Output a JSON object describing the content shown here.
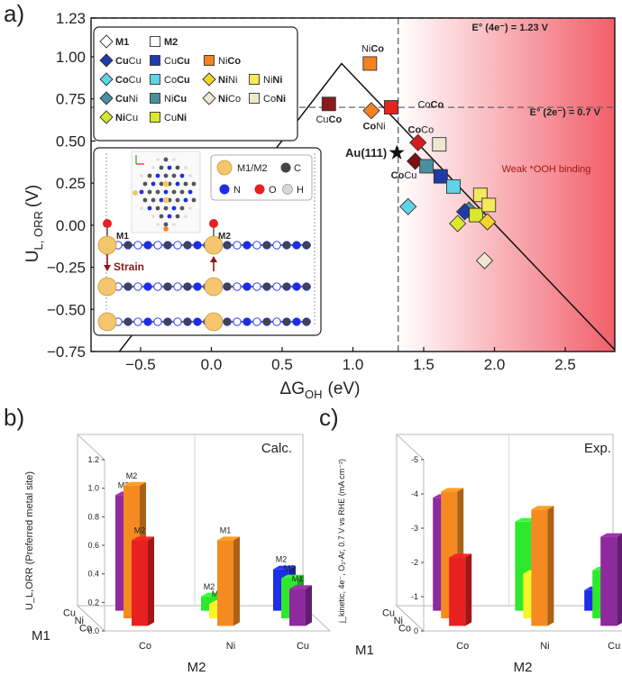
{
  "panel_a": {
    "label": "a)",
    "ylabel_main": "U",
    "ylabel_sub": "L, ORR",
    "ylabel_unit": "(V)",
    "xlabel_main": "ΔG",
    "xlabel_sub": "OH",
    "xlabel_unit": "(eV)",
    "e4_label": "E° (4e⁻) = 1.23 V",
    "e2_label": "E° (2e⁻) = 0.7 V",
    "weak_label": "Weak *OOH binding",
    "au_label": "Au(111)",
    "inset_legend": [
      {
        "text": "M1/M2",
        "color": "#f5c66e"
      },
      {
        "text": "C",
        "color": "#444444"
      },
      {
        "text": "N",
        "color": "#1d2de8"
      },
      {
        "text": "O",
        "color": "#e82020"
      },
      {
        "text": "H",
        "color": "#d8d8d8"
      }
    ],
    "inset_m1": "M1",
    "inset_m2": "M2",
    "strain_label": "Strain"
  },
  "chart_data": [
    {
      "type": "scatter",
      "xlabel": "ΔG_OH (eV)",
      "ylabel": "U_L,ORR (V)",
      "xlim": [
        -0.85,
        2.85
      ],
      "ylim": [
        -0.75,
        1.23
      ],
      "xticks": [
        "−0.5",
        "0.0",
        "0.5",
        "1.0",
        "1.5",
        "2.0",
        "2.5"
      ],
      "xtick_values": [
        -0.5,
        0,
        0.5,
        1.0,
        1.5,
        2.0,
        2.5
      ],
      "yticks": [
        "−0.75",
        "−0.50",
        "−0.25",
        "0.00",
        "0.25",
        "0.50",
        "0.75",
        "1.00",
        "1.23"
      ],
      "ytick_values": [
        -0.75,
        -0.5,
        -0.25,
        0,
        0.25,
        0.5,
        0.75,
        1.0,
        1.23
      ],
      "hlines": [
        1.23,
        0.7
      ],
      "vline": 1.32,
      "volcano": [
        [
          -0.65,
          -0.75
        ],
        [
          0.92,
          0.96
        ],
        [
          2.85,
          -0.74
        ]
      ],
      "legend": [
        {
          "label": "M1",
          "shape": "diamond",
          "color": "#ffffff",
          "bold": true
        },
        {
          "label": "M2",
          "shape": "square",
          "color": "#ffffff",
          "bold": true
        },
        {
          "pre": "Cu",
          "post": "Cu",
          "bold": "pre",
          "shape": "diamond",
          "color": "#1e3ba8"
        },
        {
          "pre": "Cu",
          "post": "Cu",
          "bold": "post",
          "shape": "square",
          "color": "#1e3ba8"
        },
        {
          "pre": "Ni",
          "post": "Co",
          "bold": "post",
          "shape": "square",
          "color": "#f58220"
        },
        {
          "pre": "Co",
          "post": "Cu",
          "bold": "pre",
          "shape": "diamond",
          "color": "#5fd3e8"
        },
        {
          "pre": "Co",
          "post": "Cu",
          "bold": "post",
          "shape": "square",
          "color": "#5fd3e8"
        },
        {
          "pre": "Ni",
          "post": "Ni",
          "bold": "pre",
          "shape": "diamond",
          "color": "#f5d52a"
        },
        {
          "pre": "Ni",
          "post": "Ni",
          "bold": "post",
          "shape": "square",
          "color": "#f5e85a"
        },
        {
          "pre": "Cu",
          "post": "Ni",
          "bold": "pre",
          "shape": "diamond",
          "color": "#4a8fa0"
        },
        {
          "pre": "Ni",
          "post": "Cu",
          "bold": "post",
          "shape": "square",
          "color": "#4a8fa0"
        },
        {
          "pre": "Ni",
          "post": "Co",
          "bold": "pre",
          "shape": "diamond",
          "color": "#efe8d0"
        },
        {
          "pre": "Co",
          "post": "Ni",
          "bold": "post",
          "shape": "square",
          "color": "#efe8d0"
        },
        {
          "pre": "Ni",
          "post": "Cu",
          "bold": "pre",
          "shape": "diamond",
          "color": "#d9e82a"
        },
        {
          "pre": "Cu",
          "post": "Ni",
          "bold": "post",
          "shape": "square",
          "color": "#d9e82a"
        }
      ],
      "points": [
        {
          "x": 0.83,
          "y": 0.72,
          "shape": "square",
          "color": "#8b1a1a",
          "pre": "Cu",
          "post": "Co",
          "bold": "post",
          "lx": 0.0,
          "ly": -0.09
        },
        {
          "x": 1.12,
          "y": 0.96,
          "shape": "square",
          "color": "#f58220",
          "pre": "Ni",
          "post": "Co",
          "bold": "post",
          "lx": 0.02,
          "ly": 0.09
        },
        {
          "x": 1.13,
          "y": 0.68,
          "shape": "diamond",
          "color": "#f58220",
          "pre": "Co",
          "post": "Ni",
          "bold": "pre",
          "lx": 0.02,
          "ly": -0.09
        },
        {
          "x": 1.27,
          "y": 0.7,
          "shape": "square",
          "color": "#e82020",
          "pre": "Co",
          "post": "Co",
          "bold": "post",
          "lx": 0.28,
          "ly": 0.02
        },
        {
          "x": 1.46,
          "y": 0.49,
          "shape": "diamond",
          "color": "#d41e1e",
          "pre": "Co",
          "post": "Co",
          "bold": "pre",
          "lx": 0.02,
          "ly": 0.08
        },
        {
          "x": 1.44,
          "y": 0.38,
          "shape": "diamond",
          "color": "#7a1010",
          "pre": "Co",
          "post": "Cu",
          "bold": "pre",
          "lx": -0.08,
          "ly": -0.08
        },
        {
          "x": 1.61,
          "y": 0.48,
          "shape": "square",
          "color": "#efe8d0"
        },
        {
          "x": 1.39,
          "y": 0.11,
          "shape": "diamond",
          "color": "#5fd3e8"
        },
        {
          "x": 1.52,
          "y": 0.35,
          "shape": "square",
          "color": "#4a8fa0"
        },
        {
          "x": 1.62,
          "y": 0.29,
          "shape": "square",
          "color": "#1e3ba8"
        },
        {
          "x": 1.71,
          "y": 0.23,
          "shape": "square",
          "color": "#5fd3e8"
        },
        {
          "x": 1.74,
          "y": 0.01,
          "shape": "diamond",
          "color": "#d9e82a"
        },
        {
          "x": 1.82,
          "y": 0.09,
          "shape": "diamond",
          "color": "#4a8fa0"
        },
        {
          "x": 1.79,
          "y": 0.08,
          "shape": "diamond",
          "color": "#1e3ba8"
        },
        {
          "x": 1.87,
          "y": 0.06,
          "shape": "square",
          "color": "#d9e82a"
        },
        {
          "x": 1.9,
          "y": 0.18,
          "shape": "square",
          "color": "#f5e85a"
        },
        {
          "x": 1.96,
          "y": 0.12,
          "shape": "square",
          "color": "#f5e85a"
        },
        {
          "x": 1.95,
          "y": 0.02,
          "shape": "diamond",
          "color": "#f5d52a"
        },
        {
          "x": 1.93,
          "y": -0.21,
          "shape": "diamond",
          "color": "#efe8d0"
        }
      ],
      "star": {
        "x": 1.31,
        "y": 0.43
      }
    },
    {
      "type": "bar",
      "title": "Calc.",
      "label": "b)",
      "ylabel": "U_L,ORR (Preferred metal site)",
      "ylim": [
        0,
        1.2
      ],
      "yticks": [
        "0.0",
        "0.2",
        "0.4",
        "0.6",
        "0.8",
        "1.0",
        "1.2"
      ],
      "ytick_values": [
        0,
        0.2,
        0.4,
        0.6,
        0.8,
        1.0,
        1.2
      ],
      "xlabel": "M2",
      "ylabel2": "M1",
      "m2_categories": [
        "Co",
        "Ni",
        "Cu"
      ],
      "m1_categories": [
        "Cu",
        "Ni",
        "Co"
      ],
      "bars": [
        {
          "m1": "Cu",
          "m2": "Co",
          "value": 0.81,
          "site": "M2",
          "color": "#8e2a9e"
        },
        {
          "m1": "Ni",
          "m2": "Co",
          "value": 0.93,
          "site": "M2",
          "color": "#f58a20"
        },
        {
          "m1": "Co",
          "m2": "Co",
          "value": 0.6,
          "site": "M2",
          "color": "#e82020"
        },
        {
          "m1": "Cu",
          "m2": "Ni",
          "value": 0.1,
          "site": "M2",
          "color": "#2ee82e"
        },
        {
          "m1": "Ni",
          "m2": "Ni",
          "value": 0.1,
          "site": "M2",
          "color": "#f5f52a"
        },
        {
          "m1": "Co",
          "m2": "Ni",
          "value": 0.6,
          "site": "M1",
          "color": "#f58a20"
        },
        {
          "m1": "Cu",
          "m2": "Cu",
          "value": 0.29,
          "site": "M2",
          "color": "#1d2de8"
        },
        {
          "m1": "Ni",
          "m2": "Cu",
          "value": 0.28,
          "site": "M2",
          "color": "#2ee82e"
        },
        {
          "m1": "Co",
          "m2": "Cu",
          "value": 0.26,
          "site": "M1",
          "color": "#8e2a9e"
        }
      ]
    },
    {
      "type": "bar",
      "title": "Exp.",
      "label": "c)",
      "ylabel": "j_kinetic, 4e⁻, O₂-Ar, 0.7 V vs RHE (mA cm⁻²)",
      "ylim": [
        0,
        -5
      ],
      "yticks": [
        "0",
        "-1",
        "-2",
        "-3",
        "-4",
        "-5"
      ],
      "ytick_values": [
        0,
        -1,
        -2,
        -3,
        -4,
        -5
      ],
      "xlabel": "M2",
      "ylabel2": "M1",
      "m2_categories": [
        "Co",
        "Ni",
        "Cu"
      ],
      "m1_categories": [
        "Cu",
        "Ni",
        "Co"
      ],
      "bars": [
        {
          "m1": "Cu",
          "m2": "Co",
          "value": -3.3,
          "color": "#8e2a9e"
        },
        {
          "m1": "Ni",
          "m2": "Co",
          "value": -3.7,
          "color": "#f58a20"
        },
        {
          "m1": "Co",
          "m2": "Co",
          "value": -2.0,
          "color": "#e82020"
        },
        {
          "m1": "Cu",
          "m2": "Ni",
          "value": -2.6,
          "color": "#2ee82e"
        },
        {
          "m1": "Ni",
          "m2": "Ni",
          "value": -1.3,
          "color": "#f5f52a"
        },
        {
          "m1": "Co",
          "m2": "Ni",
          "value": -3.4,
          "color": "#f58a20"
        },
        {
          "m1": "Cu",
          "m2": "Cu",
          "value": -0.6,
          "color": "#1d2de8"
        },
        {
          "m1": "Ni",
          "m2": "Cu",
          "value": -1.4,
          "color": "#2ee82e"
        },
        {
          "m1": "Co",
          "m2": "Cu",
          "value": -2.6,
          "color": "#8e2a9e"
        }
      ]
    }
  ]
}
